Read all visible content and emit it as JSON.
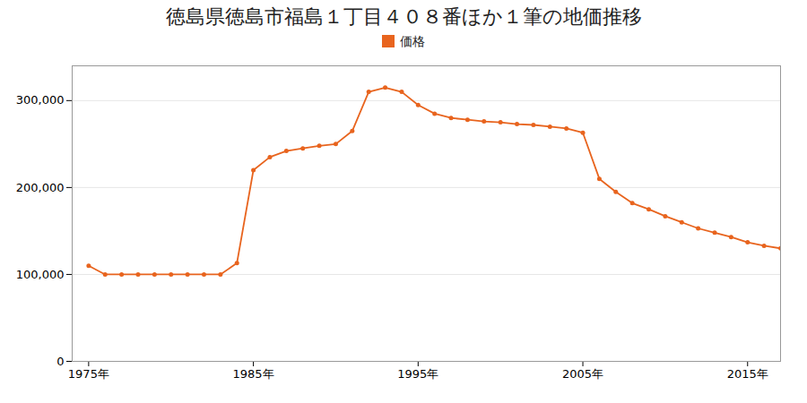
{
  "chart_data": {
    "type": "line",
    "title": "徳島県徳島市福島１丁目４０８番ほか１筆の地価推移",
    "x": [
      1975,
      1976,
      1977,
      1978,
      1979,
      1980,
      1981,
      1982,
      1983,
      1984,
      1985,
      1986,
      1987,
      1988,
      1989,
      1990,
      1991,
      1992,
      1993,
      1994,
      1995,
      1996,
      1997,
      1998,
      1999,
      2000,
      2001,
      2002,
      2003,
      2004,
      2005,
      2006,
      2007,
      2008,
      2009,
      2010,
      2011,
      2012,
      2013,
      2014,
      2015,
      2016,
      2017
    ],
    "series": [
      {
        "name": "価格",
        "color": "#e8641e",
        "marker": "o",
        "values": [
          110000,
          100000,
          100000,
          100000,
          100000,
          100000,
          100000,
          100000,
          100000,
          113000,
          220000,
          235000,
          242000,
          245000,
          248000,
          250000,
          265000,
          310000,
          315000,
          310000,
          295000,
          285000,
          280000,
          278000,
          276000,
          275000,
          273000,
          272000,
          270000,
          268000,
          263000,
          210000,
          195000,
          182000,
          175000,
          167000,
          160000,
          153000,
          148000,
          143000,
          137000,
          133000,
          130000
        ]
      }
    ],
    "xlim": [
      1974,
      2017
    ],
    "xticks": [
      {
        "value": 1975,
        "label": "1975年"
      },
      {
        "value": 1985,
        "label": "1985年"
      },
      {
        "value": 1995,
        "label": "1995年"
      },
      {
        "value": 2005,
        "label": "2005年"
      },
      {
        "value": 2015,
        "label": "2015年"
      }
    ],
    "ylim": [
      0,
      340000
    ],
    "yticks": [
      0,
      {
        "value": 100000,
        "label": "100,000"
      },
      {
        "value": 200000,
        "label": "200,000"
      },
      {
        "value": 300000,
        "label": "300,000"
      }
    ],
    "grid": "y",
    "legend": "top"
  }
}
